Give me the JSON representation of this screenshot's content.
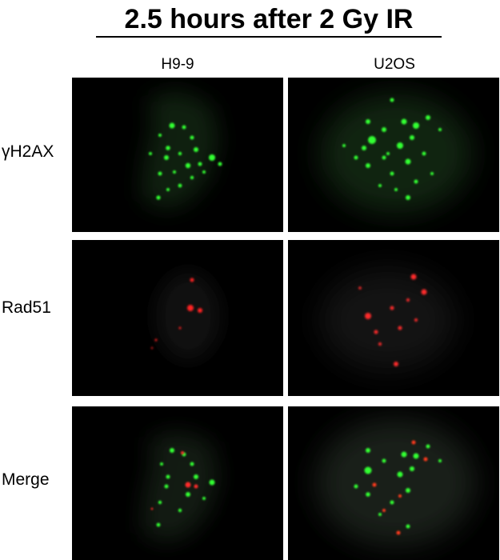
{
  "figure": {
    "title": "2.5 hours after 2 Gy IR",
    "columns": [
      "H9-9",
      "U2OS"
    ],
    "rows": [
      "γH2AX",
      "Rad51",
      "Merge"
    ],
    "stain_colors": {
      "gammaH2AX": "#22ee22",
      "Rad51": "#ff2020",
      "background": "#000000"
    }
  }
}
